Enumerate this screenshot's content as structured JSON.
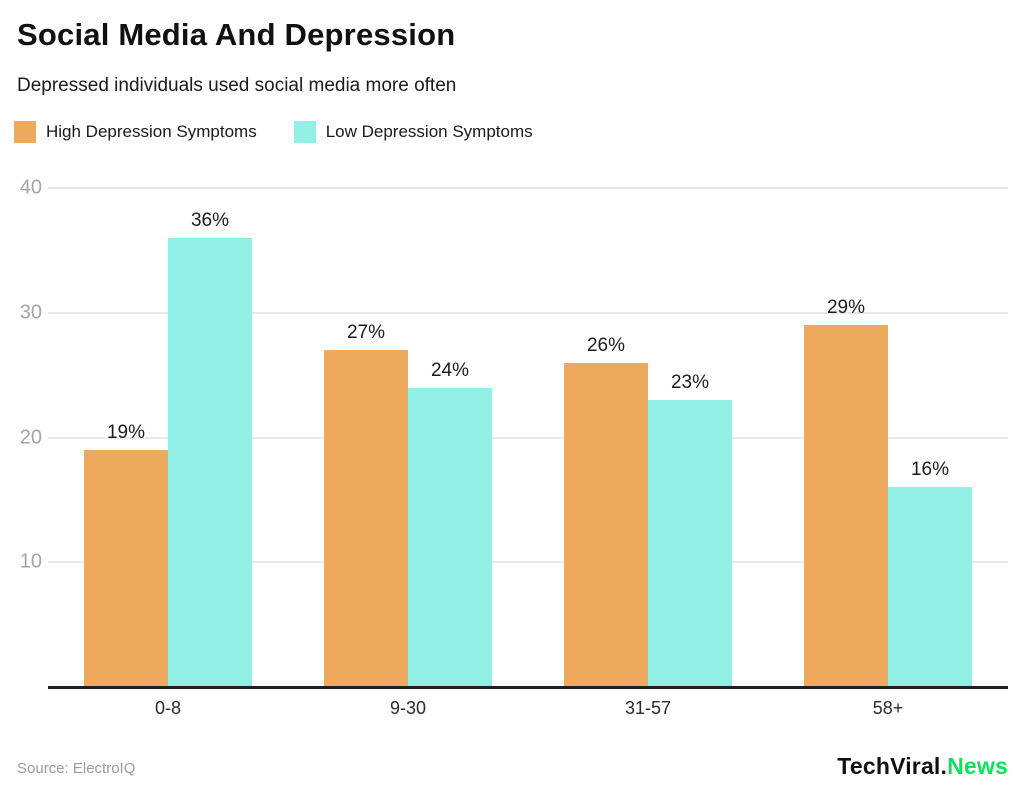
{
  "header": {
    "title": "Social Media And Depression",
    "subtitle": "Depressed individuals used social media more often"
  },
  "legend": {
    "items": [
      {
        "label": "High Depression Symptoms",
        "color": "#eda95e"
      },
      {
        "label": "Low Depression Symptoms",
        "color": "#92efe6"
      }
    ]
  },
  "chart_data": {
    "type": "bar",
    "title": "Social Media And Depression",
    "subtitle": "Depressed individuals used social media more often",
    "categories": [
      "0-8",
      "9-30",
      "31-57",
      "58+"
    ],
    "series": [
      {
        "name": "High Depression Symptoms",
        "color": "#eda95e",
        "values": [
          19,
          27,
          26,
          29
        ]
      },
      {
        "name": "Low Depression Symptoms",
        "color": "#92efe6",
        "values": [
          36,
          24,
          23,
          16
        ]
      }
    ],
    "value_label_suffix": "%",
    "xlabel": "",
    "ylabel": "",
    "ylim": [
      0,
      40
    ],
    "yticks": [
      10,
      20,
      30,
      40
    ],
    "grid": true,
    "legend_position": "top-left"
  },
  "footer": {
    "source": "Source: ElectroIQ",
    "brand_black": "TechViral.",
    "brand_green": "News"
  },
  "colors": {
    "bar_high": "#eda95e",
    "bar_low": "#92efe6",
    "grid_line": "#e8e8e8",
    "axis_line": "#1f1f1f",
    "tick_text": "#a5a5a5",
    "brand_green": "#0be45c",
    "background": "#ffffff"
  }
}
